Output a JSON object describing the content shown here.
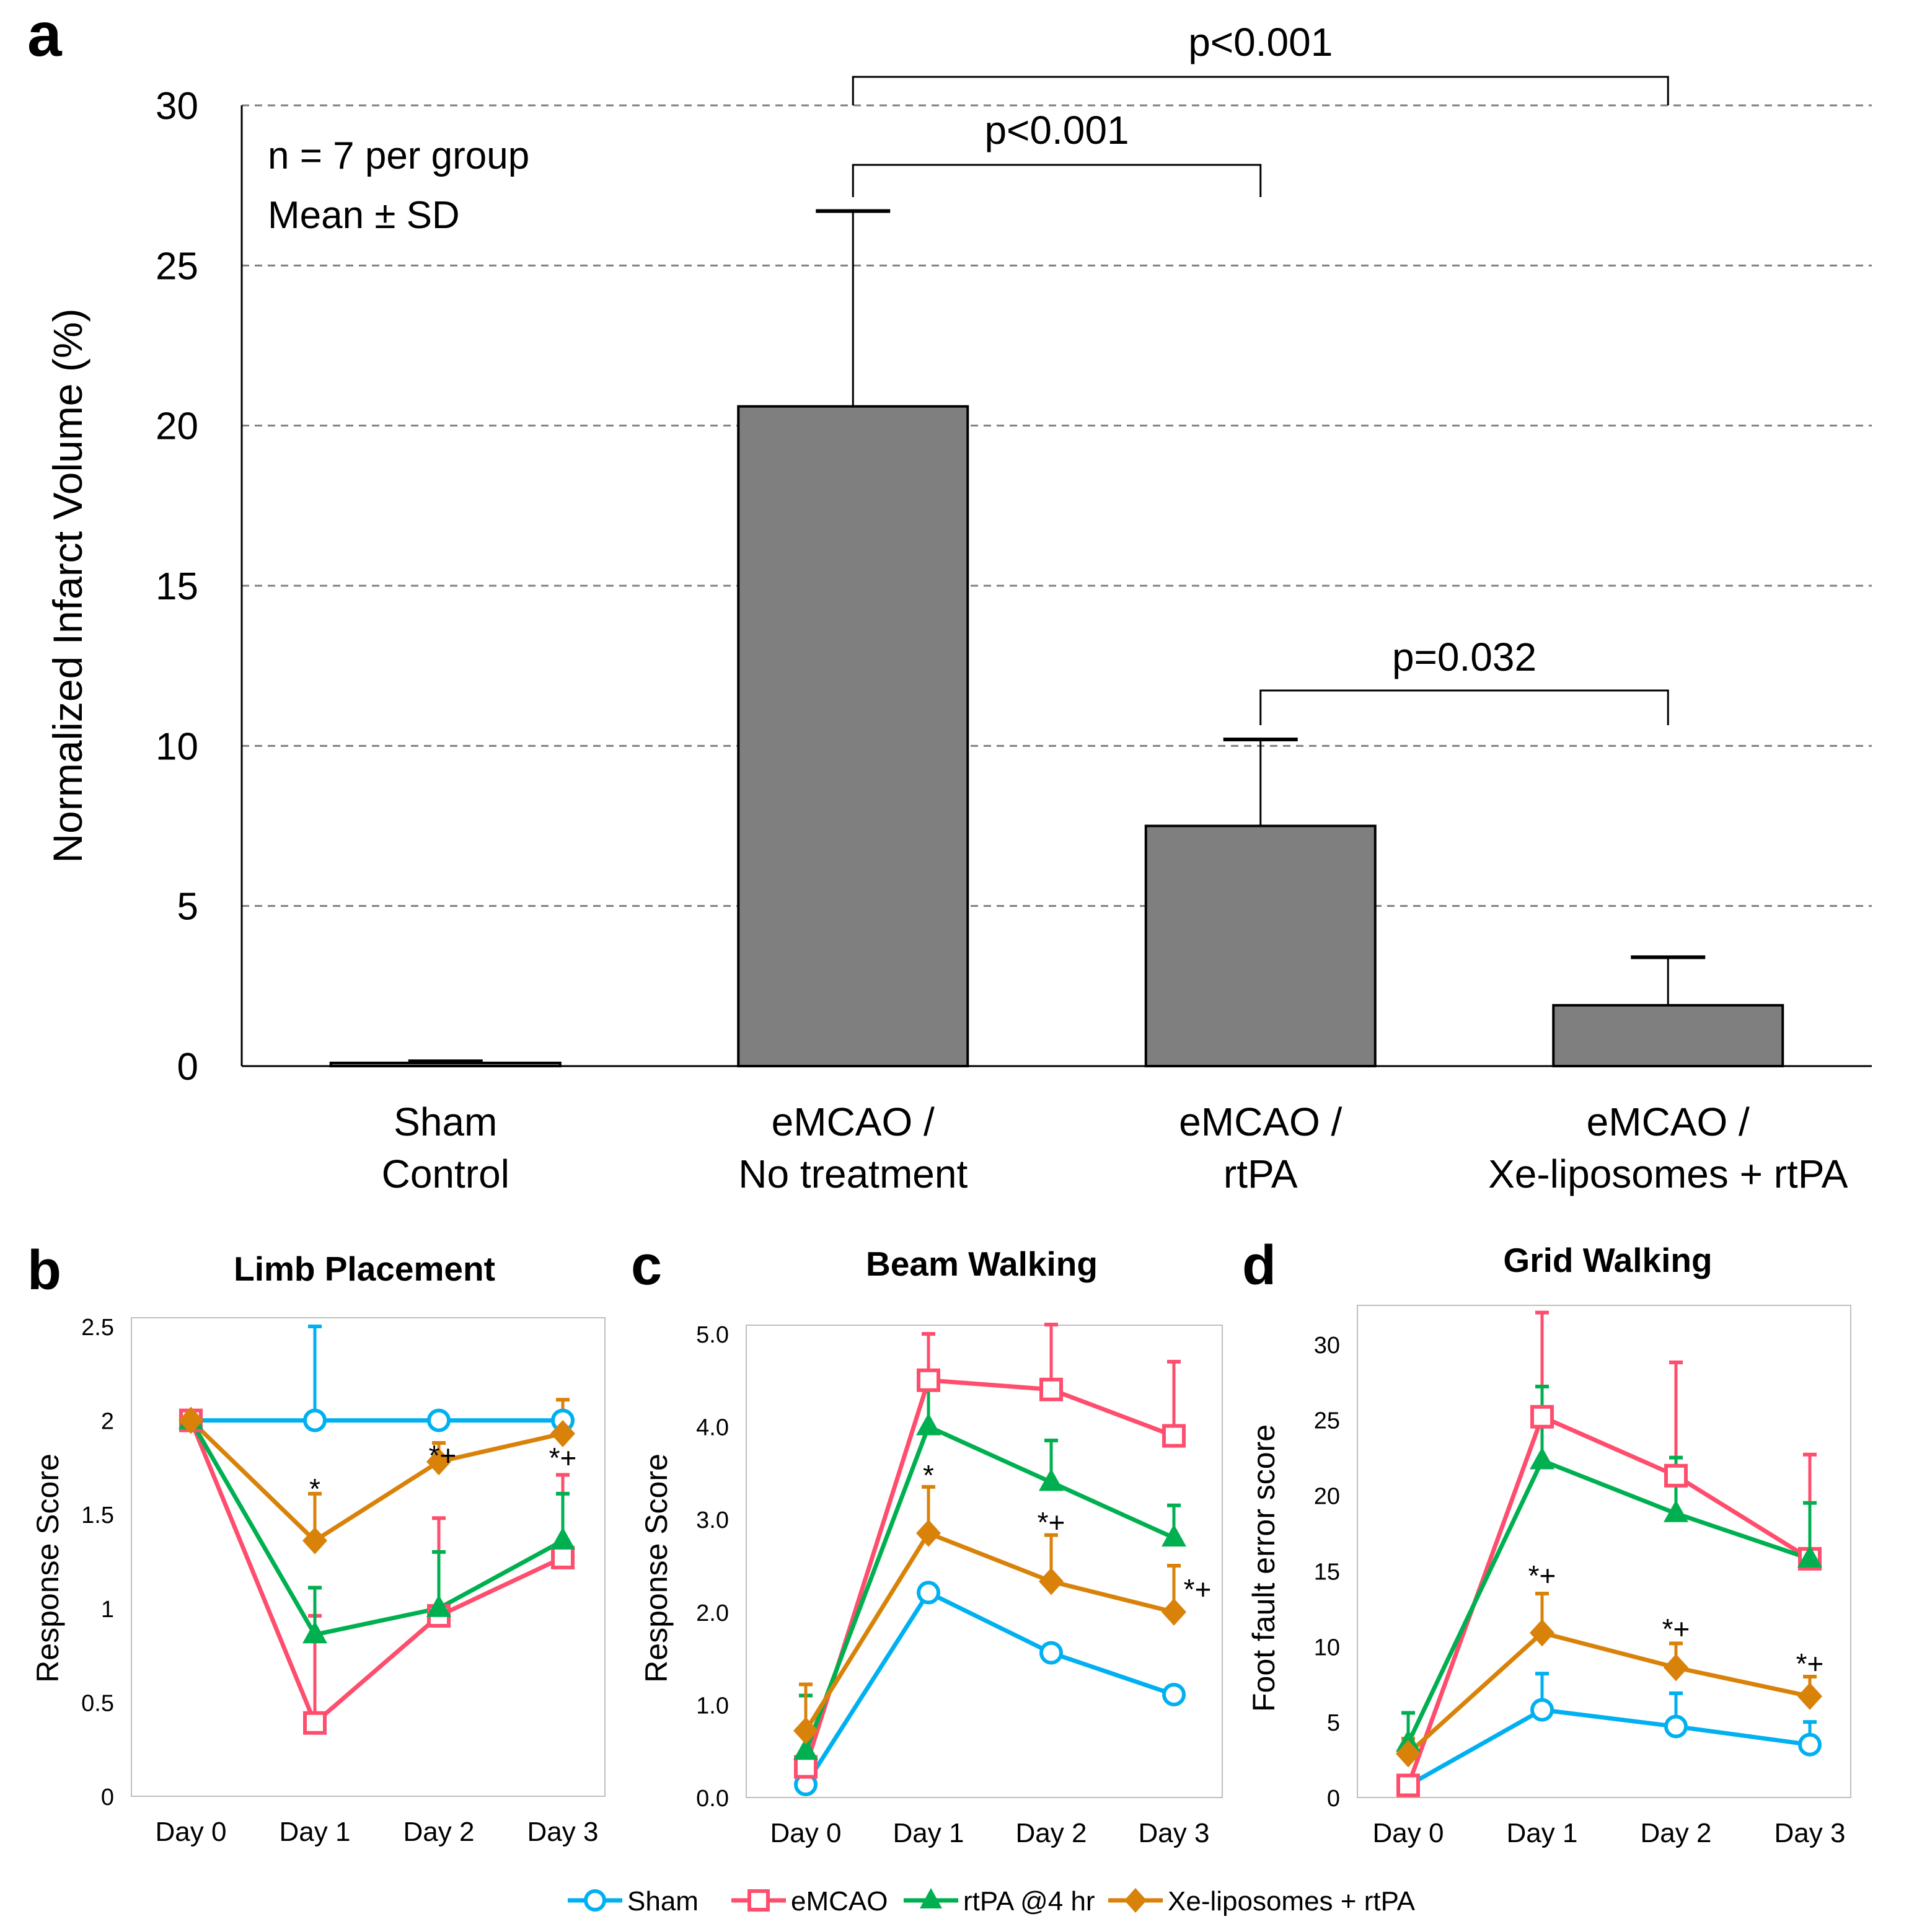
{
  "colors": {
    "bar_fill": "#7f7f7f",
    "grid": "#808080",
    "sham": "#00b0f0",
    "emcao": "#ff4d6d",
    "rtpa": "#00b050",
    "xe": "#d9820a"
  },
  "chart_data": [
    {
      "panel_letter": "a",
      "type": "bar",
      "categories": [
        [
          "Sham",
          "Control"
        ],
        [
          "eMCAO /",
          "No treatment"
        ],
        [
          "eMCAO /",
          "rtPA"
        ],
        [
          "eMCAO /",
          "Xe-liposomes + rtPA"
        ]
      ],
      "values": [
        0.1,
        20.6,
        7.5,
        1.9
      ],
      "errors": [
        0.05,
        6.1,
        2.7,
        1.5
      ],
      "ylabel": "Normalized Infarct Volume  (%)",
      "ylim": [
        0,
        30
      ],
      "yticks": [
        0,
        5,
        10,
        15,
        20,
        25,
        30
      ],
      "grid": true,
      "annotations": [
        "n = 7 per group",
        "Mean ± SD"
      ],
      "comparisons": [
        {
          "from": 1,
          "to": 3,
          "label": "p<0.001"
        },
        {
          "from": 1,
          "to": 2,
          "label": "p<0.001"
        },
        {
          "from": 2,
          "to": 3,
          "label": "p=0.032"
        }
      ]
    },
    {
      "panel_letter": "b",
      "type": "line",
      "title": "Limb Placement",
      "ylabel": "Response Score",
      "x": [
        "Day 0",
        "Day 1",
        "Day 2",
        "Day 3"
      ],
      "ylim": [
        0,
        2.5
      ],
      "yticks": [
        "0",
        "0.5",
        "1",
        "1.5",
        "2",
        "2.5"
      ],
      "series": [
        {
          "name": "Sham",
          "values": [
            2.0,
            2.0,
            2.0,
            2.0
          ],
          "errors": [
            0,
            0.5,
            0,
            0
          ]
        },
        {
          "name": "eMCAO",
          "values": [
            2.0,
            0.39,
            0.96,
            1.27
          ],
          "errors": [
            0,
            0.57,
            0.52,
            0.44
          ]
        },
        {
          "name": "rtPA @4 hr",
          "values": [
            2.0,
            0.86,
            1.0,
            1.36
          ],
          "errors": [
            0,
            0.25,
            0.3,
            0.25
          ]
        },
        {
          "name": "Xe-liposomes + rtPA",
          "values": [
            2.0,
            1.36,
            1.78,
            1.93
          ],
          "errors": [
            0,
            0.25,
            0.1,
            0.18
          ]
        }
      ],
      "star_labels": [
        "*",
        "*+",
        "*+"
      ]
    },
    {
      "panel_letter": "c",
      "type": "line",
      "title": "Beam Walking",
      "ylabel": "Response Score",
      "x": [
        "Day 0",
        "Day 1",
        "Day 2",
        "Day 3"
      ],
      "ylim": [
        0,
        5
      ],
      "yticks": [
        "0.0",
        "1.0",
        "2.0",
        "3.0",
        "4.0",
        "5.0"
      ],
      "series": [
        {
          "name": "Sham",
          "values": [
            0.14,
            2.21,
            1.56,
            1.11
          ],
          "errors": [
            0,
            0,
            0,
            0
          ]
        },
        {
          "name": "eMCAO",
          "values": [
            0.33,
            4.5,
            4.4,
            3.9
          ],
          "errors": [
            0,
            0.5,
            0.7,
            0.8
          ]
        },
        {
          "name": "rtPA @4 hr",
          "values": [
            0.5,
            4.0,
            3.4,
            2.8
          ],
          "errors": [
            0.6,
            0.55,
            0.45,
            0.35
          ]
        },
        {
          "name": "Xe-liposomes + rtPA",
          "values": [
            0.72,
            2.85,
            2.33,
            2.0
          ],
          "errors": [
            0.5,
            0.5,
            0.5,
            0.5
          ]
        }
      ],
      "star_labels": [
        "*",
        "*+",
        "*+"
      ]
    },
    {
      "panel_letter": "d",
      "type": "line",
      "title": "Grid Walking",
      "ylabel": "Foot fault error score",
      "x": [
        "Day 0",
        "Day 1",
        "Day 2",
        "Day 3"
      ],
      "ylim": [
        0,
        32
      ],
      "yticks": [
        "0",
        "5",
        "10",
        "15",
        "20",
        "25",
        "30"
      ],
      "series": [
        {
          "name": "Sham",
          "values": [
            0.8,
            5.8,
            4.7,
            3.5
          ],
          "errors": [
            0.3,
            2.4,
            2.2,
            1.5
          ]
        },
        {
          "name": "eMCAO",
          "values": [
            0.8,
            25.2,
            21.3,
            15.8
          ],
          "errors": [
            0,
            6.9,
            7.5,
            6.9
          ]
        },
        {
          "name": "rtPA @4 hr",
          "values": [
            3.6,
            22.3,
            18.8,
            15.8
          ],
          "errors": [
            2.0,
            4.9,
            3.7,
            3.7
          ]
        },
        {
          "name": "Xe-liposomes + rtPA",
          "values": [
            2.9,
            10.9,
            8.6,
            6.7
          ],
          "errors": [
            1.0,
            2.6,
            1.6,
            1.3
          ]
        }
      ],
      "star_labels": [
        "*+",
        "*+",
        "*+"
      ]
    }
  ],
  "legend": {
    "items": [
      "Sham",
      "eMCAO",
      "rtPA @4 hr",
      "Xe-liposomes + rtPA"
    ]
  }
}
